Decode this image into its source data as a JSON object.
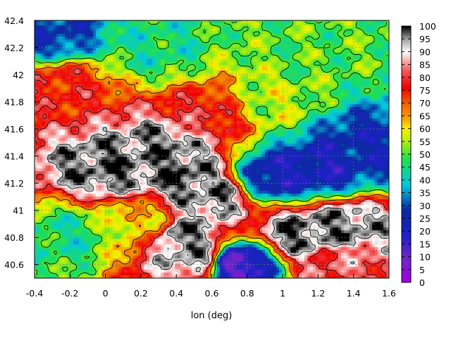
{
  "chart_data": {
    "type": "heatmap",
    "title": "",
    "xlabel": "lon (deg)",
    "ylabel": "",
    "xlim": [
      -0.4,
      1.6
    ],
    "ylim": [
      40.5,
      42.4
    ],
    "x_ticks": [
      "-0.4",
      "-0.2",
      "0",
      "0.2",
      "0.4",
      "0.6",
      "0.8",
      "1",
      "1.2",
      "1.4",
      "1.6"
    ],
    "y_ticks": [
      "40.6",
      "40.8",
      "41",
      "41.2",
      "41.4",
      "41.6",
      "41.8",
      "42",
      "42.2",
      "42.4"
    ],
    "colorbar": {
      "min": 0,
      "max": 100,
      "ticks": [
        "0",
        "5",
        "10",
        "15",
        "20",
        "25",
        "30",
        "35",
        "40",
        "45",
        "50",
        "55",
        "60",
        "65",
        "70",
        "75",
        "80",
        "85",
        "90",
        "95",
        "100"
      ],
      "palette": [
        [
          0,
          "#a000e0"
        ],
        [
          10,
          "#6a28c8"
        ],
        [
          18,
          "#2020c8"
        ],
        [
          28,
          "#0a2aa0"
        ],
        [
          38,
          "#00c8e0"
        ],
        [
          48,
          "#20e050"
        ],
        [
          56,
          "#c8f000"
        ],
        [
          60,
          "#f8f000"
        ],
        [
          64,
          "#f8a000"
        ],
        [
          70,
          "#f06000"
        ],
        [
          76,
          "#f00000"
        ],
        [
          82,
          "#f05050"
        ],
        [
          86,
          "#f8a0a0"
        ],
        [
          90,
          "#ffffff"
        ],
        [
          95,
          "#a0a0a0"
        ],
        [
          100,
          "#000000"
        ]
      ]
    },
    "grid": true,
    "contours": true,
    "features": [
      {
        "lon": 0.6,
        "lat": 41.1,
        "value": 95
      },
      {
        "lon": 0.45,
        "lat": 41.25,
        "value": 98
      },
      {
        "lon": 0.35,
        "lat": 41.45,
        "value": 96
      },
      {
        "lon": 0.0,
        "lat": 41.3,
        "value": 97
      },
      {
        "lon": 0.45,
        "lat": 40.8,
        "value": 96
      },
      {
        "lon": 0.5,
        "lat": 40.65,
        "value": 94
      },
      {
        "lon": 1.1,
        "lat": 40.83,
        "value": 97
      },
      {
        "lon": 1.35,
        "lat": 40.87,
        "value": 96
      },
      {
        "lon": 1.3,
        "lat": 40.62,
        "value": 82
      },
      {
        "lon": 0.95,
        "lat": 41.25,
        "value": 22
      },
      {
        "lon": 1.2,
        "lat": 41.3,
        "value": 21
      },
      {
        "lon": 1.45,
        "lat": 41.45,
        "value": 25
      },
      {
        "lon": -0.3,
        "lat": 42.3,
        "value": 28
      },
      {
        "lon": -0.2,
        "lat": 40.8,
        "value": 45
      },
      {
        "lon": 0.3,
        "lat": 42.2,
        "value": 45
      },
      {
        "lon": 1.1,
        "lat": 42.15,
        "value": 50
      },
      {
        "lon": 0.9,
        "lat": 41.8,
        "value": 55
      },
      {
        "lon": -0.25,
        "lat": 41.9,
        "value": 76
      },
      {
        "lon": 0.6,
        "lat": 41.7,
        "value": 78
      },
      {
        "lon": 0.2,
        "lat": 40.9,
        "value": 60
      },
      {
        "lon": 0.75,
        "lat": 40.6,
        "value": 12
      }
    ]
  }
}
